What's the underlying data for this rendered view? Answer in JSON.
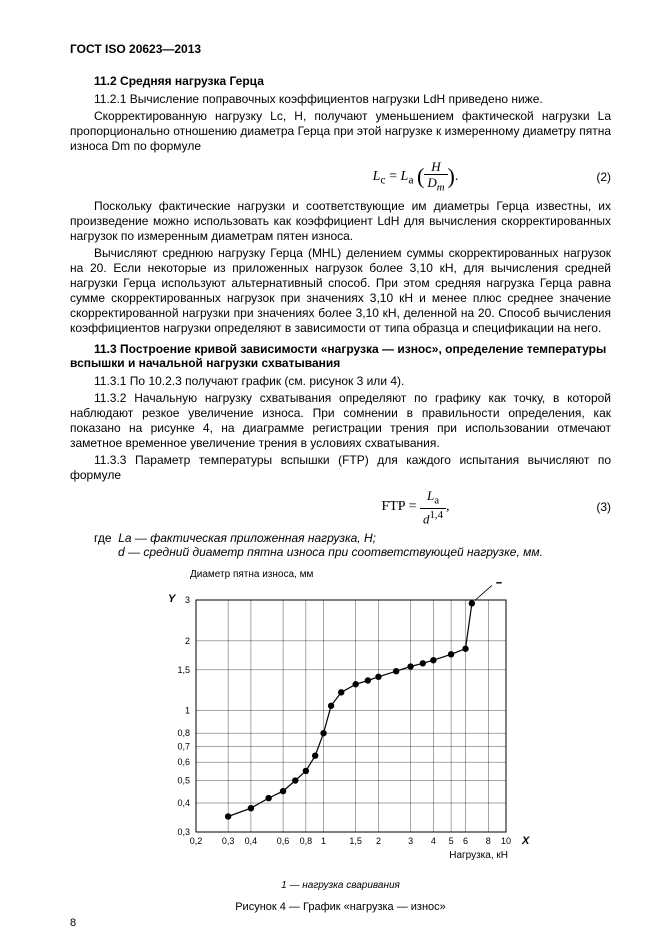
{
  "header": "ГОСТ ISO 20623—2013",
  "s11_2": {
    "title": "11.2 Средняя нагрузка Герца",
    "p1": "11.2.1 Вычисление поправочных коэффициентов нагрузки LdH приведено ниже.",
    "p2": "Скорректированную нагрузку Lc, Н, получают уменьшением фактической нагрузки La пропорционально отношению диаметра Герца при этой нагрузке к измеренному диаметру пятна износа Dm по формуле",
    "eq_num": "(2)",
    "p3": "Поскольку фактические нагрузки и соответствующие им диаметры Герца известны, их произведение можно использовать как коэффициент LdH для вычисления скорректированных нагрузок по измеренным диаметрам пятен износа.",
    "p4": "Вычисляют среднюю нагрузку Герца (MHL) делением суммы скорректированных нагрузок на 20. Если некоторые из приложенных нагрузок более 3,10 кН, для вычисления средней нагрузки Герца используют альтернативный способ. При этом средняя нагрузка Герца равна сумме скорректированных нагрузок при значениях 3,10 кН и менее плюс среднее значение скорректированной нагрузки при значениях более 3,10 кН, деленной на 20. Способ вычисления коэффициентов нагрузки определяют в зависимости от типа образца и спецификации на него."
  },
  "s11_3": {
    "title": "11.3 Построение кривой зависимости «нагрузка — износ», определение температуры вспышки и начальной нагрузки схватывания",
    "p1": "11.3.1 По 10.2.3 получают график (см. рисунок 3 или 4).",
    "p2": "11.3.2 Начальную нагрузку схватывания определяют по графику как точку, в которой наблюдают резкое увеличение износа. При сомнении в правильности определения, как показано на рисунке 4, на диаграмме регистрации трения при использовании отмечают заметное временное увеличение трения в условиях схватывания.",
    "p3": "11.3.3 Параметр температуры вспышки (FTP) для каждого испытания вычисляют по формуле",
    "eq_num": "(3)",
    "where_intro": "где",
    "where1": "La — фактическая приложенная нагрузка, Н;",
    "where2": "d — средний диаметр пятна износа при соответствующей нагрузке, мм."
  },
  "chart": {
    "type": "line-loglog",
    "y_axis_title": "Диаметр пятна износа, мм",
    "y_symbol": "Y",
    "x_symbol": "X",
    "x_axis_title": "Нагрузка, кН",
    "series_label_1": "1",
    "xticks": [
      "0,2",
      "0,3",
      "0,4",
      "0,6",
      "0,8",
      "1",
      "1,5",
      "2",
      "3",
      "4",
      "5",
      "6",
      "8",
      "10"
    ],
    "yticks": [
      "0,3",
      "0,4",
      "0,5",
      "0,6",
      "0,7",
      "0,8",
      "1",
      "1,5",
      "2",
      "3"
    ],
    "xlim": [
      0.2,
      10
    ],
    "ylim": [
      0.3,
      3
    ],
    "scale": "log-log",
    "line_color": "#000000",
    "marker": "circle-filled",
    "marker_color": "#000000",
    "marker_size": 3.2,
    "line_width": 1.2,
    "grid_color": "#000000",
    "grid_width": 0.35,
    "background_color": "#ffffff",
    "tick_fontsize": 9,
    "axis_label_fontsize": 10,
    "callout_fontsize": 12,
    "points": [
      [
        0.3,
        0.35
      ],
      [
        0.4,
        0.38
      ],
      [
        0.5,
        0.42
      ],
      [
        0.6,
        0.45
      ],
      [
        0.7,
        0.5
      ],
      [
        0.8,
        0.55
      ],
      [
        0.9,
        0.64
      ],
      [
        1.0,
        0.8
      ],
      [
        1.1,
        1.05
      ],
      [
        1.25,
        1.2
      ],
      [
        1.5,
        1.3
      ],
      [
        1.75,
        1.35
      ],
      [
        2.0,
        1.4
      ],
      [
        2.5,
        1.48
      ],
      [
        3.0,
        1.55
      ],
      [
        3.5,
        1.6
      ],
      [
        4.0,
        1.65
      ],
      [
        5.0,
        1.75
      ],
      [
        6.0,
        1.85
      ],
      [
        6.5,
        2.9
      ]
    ],
    "legend_text": "1 — нагрузка сваривания",
    "caption": "Рисунок 4 — График «нагрузка — износ»"
  },
  "page_number": "8"
}
